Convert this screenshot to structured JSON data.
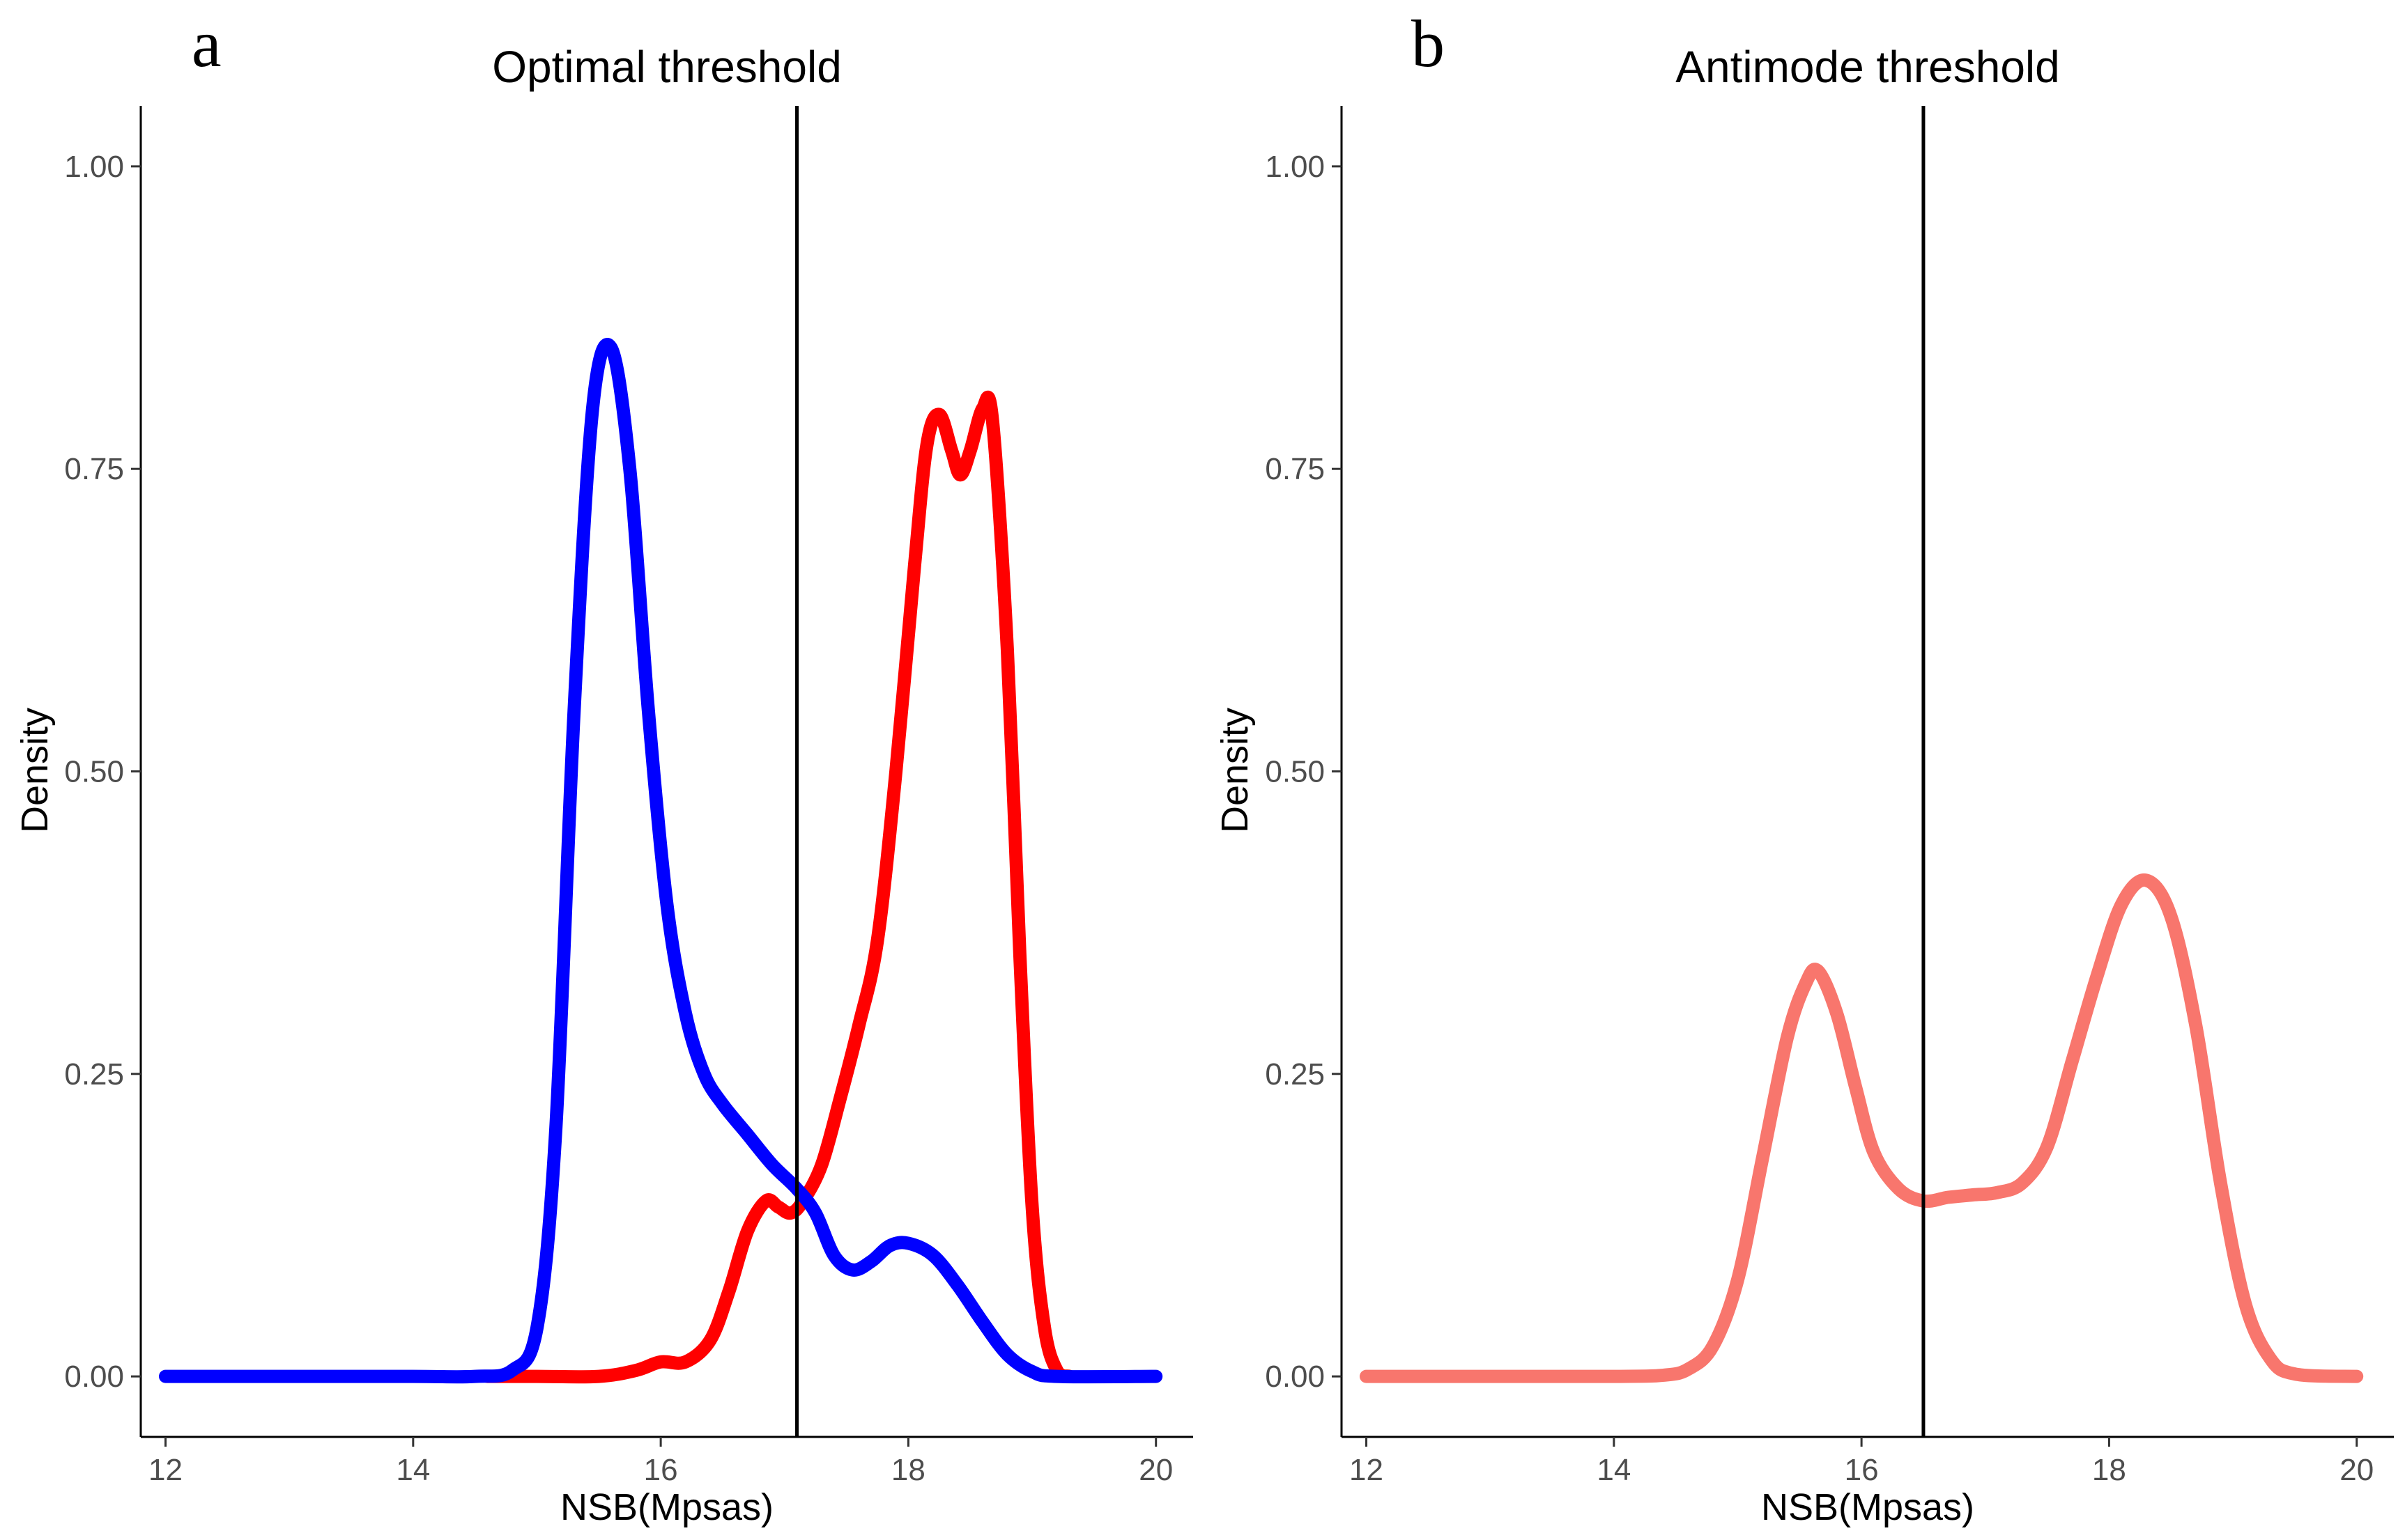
{
  "chart_data": [
    {
      "panel_label": "a",
      "type": "line",
      "title": "Optimal threshold",
      "xlabel": "NSB(Mpsas)",
      "ylabel": "Density",
      "xlim": [
        11.8,
        20.3
      ],
      "ylim": [
        -0.05,
        1.05
      ],
      "x_ticks": [
        12,
        14,
        16,
        18,
        20
      ],
      "x_tick_labels": [
        "12",
        "14",
        "16",
        "18",
        "20"
      ],
      "y_ticks": [
        0,
        0.25,
        0.5,
        0.75,
        1.0
      ],
      "y_tick_labels": [
        "0.00",
        "0.25",
        "0.50",
        "0.75",
        "1.00"
      ],
      "grid": false,
      "threshold": 17.1,
      "series": [
        {
          "name": "red",
          "color": "#ff0000",
          "points": [
            [
              14.6,
              0
            ],
            [
              15.0,
              0
            ],
            [
              15.5,
              0
            ],
            [
              15.8,
              0.005
            ],
            [
              16.0,
              0.012
            ],
            [
              16.2,
              0.012
            ],
            [
              16.4,
              0.03
            ],
            [
              16.55,
              0.07
            ],
            [
              16.7,
              0.12
            ],
            [
              16.85,
              0.145
            ],
            [
              16.95,
              0.14
            ],
            [
              17.05,
              0.135
            ],
            [
              17.15,
              0.145
            ],
            [
              17.3,
              0.175
            ],
            [
              17.45,
              0.23
            ],
            [
              17.6,
              0.29
            ],
            [
              17.75,
              0.36
            ],
            [
              17.9,
              0.5
            ],
            [
              18.05,
              0.67
            ],
            [
              18.15,
              0.77
            ],
            [
              18.25,
              0.795
            ],
            [
              18.35,
              0.765
            ],
            [
              18.42,
              0.745
            ],
            [
              18.5,
              0.765
            ],
            [
              18.6,
              0.8
            ],
            [
              18.68,
              0.79
            ],
            [
              18.8,
              0.6
            ],
            [
              18.9,
              0.35
            ],
            [
              19.0,
              0.14
            ],
            [
              19.1,
              0.04
            ],
            [
              19.2,
              0.005
            ],
            [
              19.3,
              0
            ]
          ]
        },
        {
          "name": "blue",
          "color": "#0000ff",
          "points": [
            [
              12,
              0
            ],
            [
              13,
              0
            ],
            [
              14,
              0
            ],
            [
              14.5,
              0
            ],
            [
              14.8,
              0.005
            ],
            [
              15.0,
              0.04
            ],
            [
              15.15,
              0.2
            ],
            [
              15.3,
              0.55
            ],
            [
              15.45,
              0.8
            ],
            [
              15.6,
              0.85
            ],
            [
              15.75,
              0.75
            ],
            [
              15.9,
              0.55
            ],
            [
              16.05,
              0.39
            ],
            [
              16.2,
              0.3
            ],
            [
              16.35,
              0.25
            ],
            [
              16.5,
              0.225
            ],
            [
              16.7,
              0.2
            ],
            [
              16.9,
              0.175
            ],
            [
              17.1,
              0.155
            ],
            [
              17.25,
              0.135
            ],
            [
              17.4,
              0.1
            ],
            [
              17.55,
              0.088
            ],
            [
              17.7,
              0.095
            ],
            [
              17.85,
              0.108
            ],
            [
              18.0,
              0.11
            ],
            [
              18.2,
              0.1
            ],
            [
              18.4,
              0.075
            ],
            [
              18.6,
              0.045
            ],
            [
              18.8,
              0.018
            ],
            [
              19.0,
              0.004
            ],
            [
              19.2,
              0
            ],
            [
              20,
              0
            ]
          ]
        }
      ]
    },
    {
      "panel_label": "b",
      "type": "line",
      "title": "Antimode threshold",
      "xlabel": "NSB(Mpsas)",
      "ylabel": "Density",
      "xlim": [
        11.8,
        20.3
      ],
      "ylim": [
        -0.05,
        1.05
      ],
      "x_ticks": [
        12,
        14,
        16,
        18,
        20
      ],
      "x_tick_labels": [
        "12",
        "14",
        "16",
        "18",
        "20"
      ],
      "y_ticks": [
        0,
        0.25,
        0.5,
        0.75,
        1.0
      ],
      "y_tick_labels": [
        "0.00",
        "0.25",
        "0.50",
        "0.75",
        "1.00"
      ],
      "grid": false,
      "threshold": 16.5,
      "series": [
        {
          "name": "density",
          "color": "#f8766d",
          "points": [
            [
              12,
              0
            ],
            [
              13,
              0
            ],
            [
              14,
              0
            ],
            [
              14.4,
              0.001
            ],
            [
              14.6,
              0.006
            ],
            [
              14.8,
              0.025
            ],
            [
              15.0,
              0.08
            ],
            [
              15.2,
              0.18
            ],
            [
              15.4,
              0.28
            ],
            [
              15.55,
              0.325
            ],
            [
              15.65,
              0.335
            ],
            [
              15.8,
              0.3
            ],
            [
              15.95,
              0.24
            ],
            [
              16.1,
              0.185
            ],
            [
              16.3,
              0.155
            ],
            [
              16.5,
              0.145
            ],
            [
              16.7,
              0.148
            ],
            [
              16.9,
              0.15
            ],
            [
              17.1,
              0.152
            ],
            [
              17.3,
              0.16
            ],
            [
              17.5,
              0.19
            ],
            [
              17.7,
              0.26
            ],
            [
              17.9,
              0.33
            ],
            [
              18.1,
              0.39
            ],
            [
              18.3,
              0.41
            ],
            [
              18.5,
              0.38
            ],
            [
              18.7,
              0.29
            ],
            [
              18.9,
              0.16
            ],
            [
              19.1,
              0.06
            ],
            [
              19.3,
              0.015
            ],
            [
              19.5,
              0.002
            ],
            [
              20,
              0
            ]
          ]
        }
      ]
    }
  ]
}
